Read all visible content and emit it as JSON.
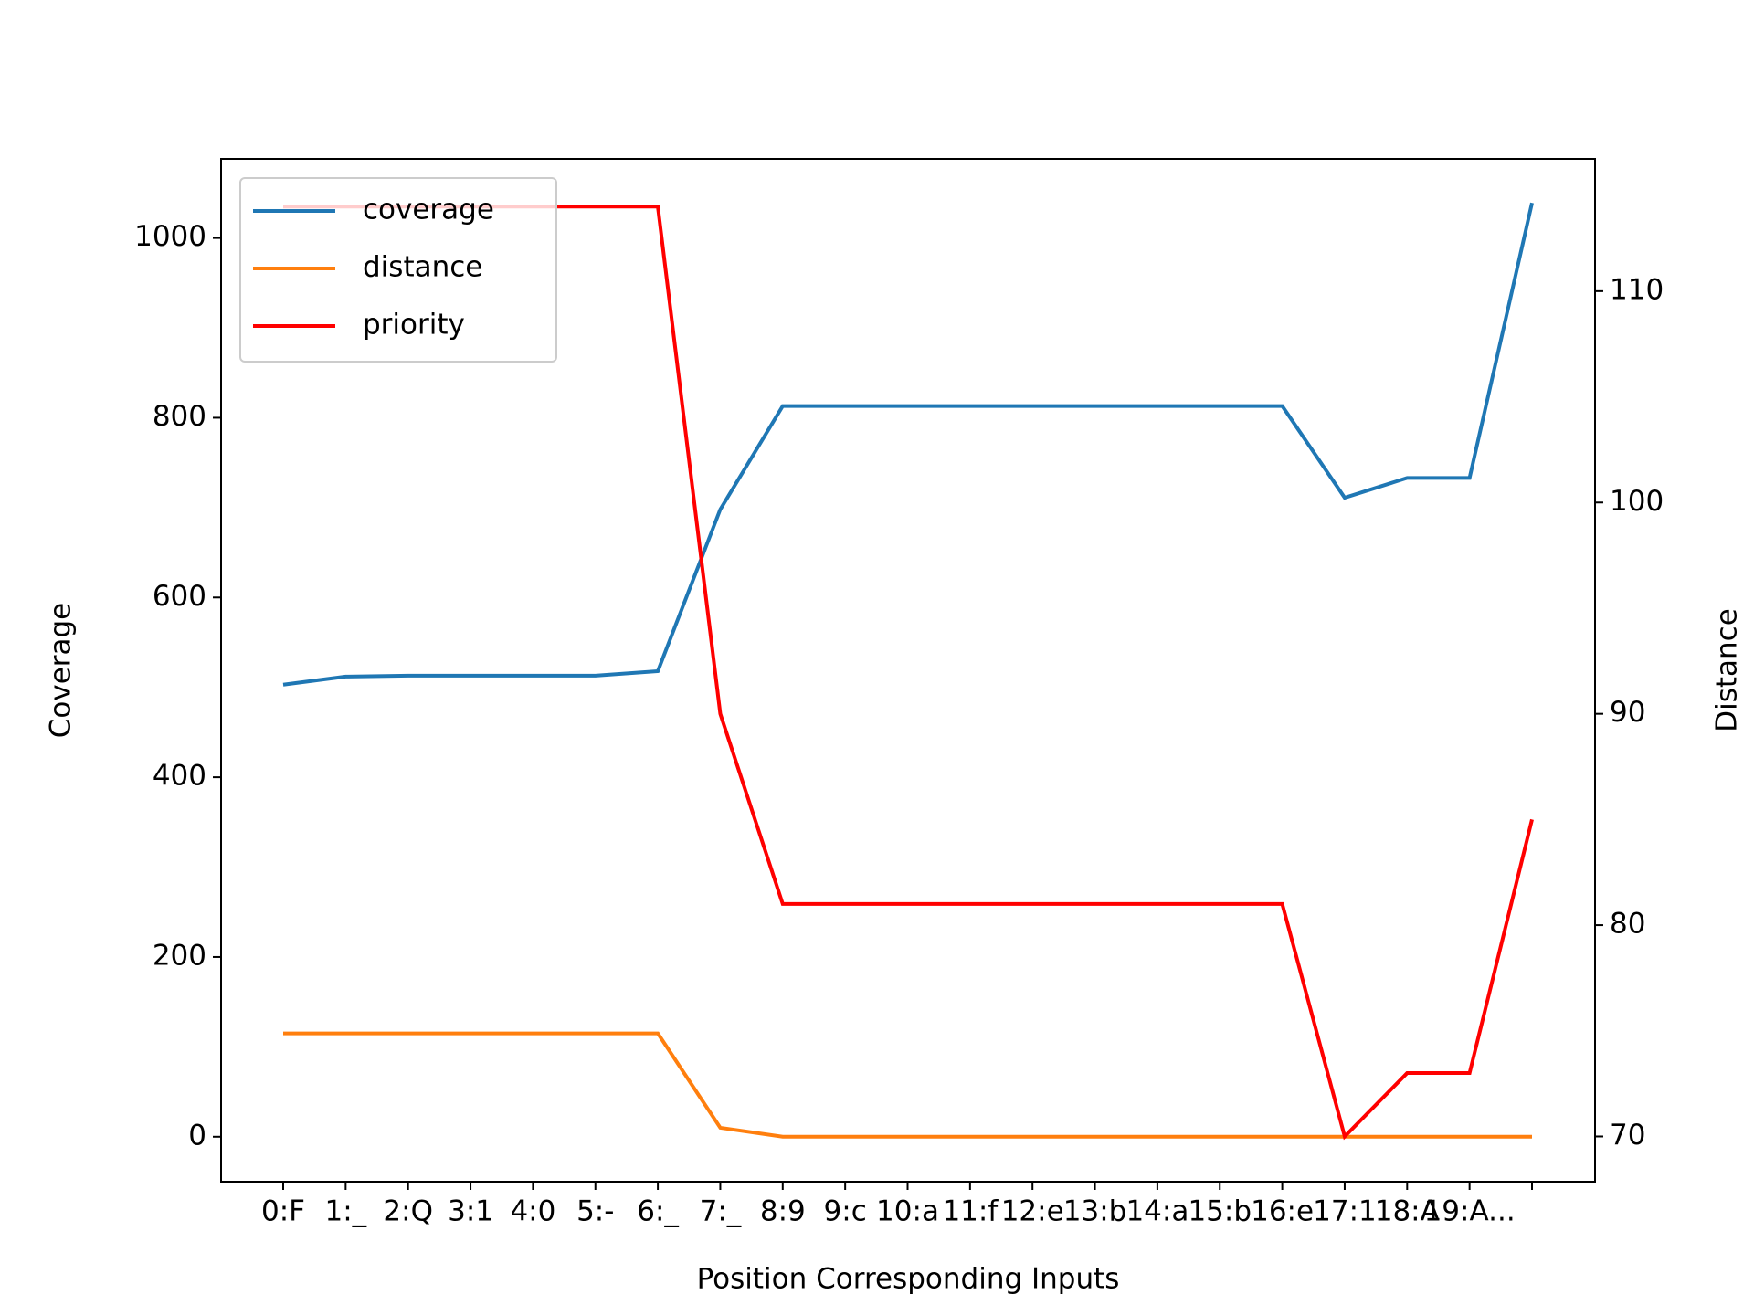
{
  "chart_data": {
    "type": "line",
    "xlabel": "Position Corresponding Inputs",
    "ylabel": "Coverage",
    "y2label": "Distance",
    "categories": [
      "0:F",
      "1:_",
      "2:Q",
      "3:1",
      "4:0",
      "5:-",
      "6:_",
      "7:_",
      "8:9",
      "9:c",
      "10:a",
      "11:f",
      "12:e",
      "13:b",
      "14:a",
      "15:b",
      "16:e",
      "17:1",
      "18:A",
      "19:A...",
      null
    ],
    "series": [
      {
        "name": "coverage",
        "color": "#1f77b4",
        "values": [
          503,
          512,
          513,
          513,
          513,
          513,
          518,
          698,
          813,
          813,
          813,
          813,
          813,
          813,
          813,
          813,
          813,
          711,
          733,
          733,
          1039
        ]
      },
      {
        "name": "distance",
        "color": "#ff7f0e",
        "values": [
          115,
          115,
          115,
          115,
          115,
          115,
          115,
          10,
          0,
          0,
          0,
          0,
          0,
          0,
          0,
          0,
          0,
          0,
          0,
          0,
          0
        ]
      },
      {
        "name": "priority",
        "color": "#ff0000",
        "axis": "y2",
        "values": [
          114,
          114,
          114,
          114,
          114,
          114,
          114,
          90,
          81,
          81,
          81,
          81,
          81,
          81,
          81,
          81,
          81,
          70,
          73,
          73,
          85
        ]
      }
    ],
    "ylim": [
      -50,
      1088
    ],
    "yticks": [
      0,
      200,
      400,
      600,
      800,
      1000
    ],
    "y2lim": [
      67.86,
      116.26
    ],
    "y2ticks": [
      70,
      80,
      90,
      100,
      110
    ],
    "legend": "upper left"
  }
}
